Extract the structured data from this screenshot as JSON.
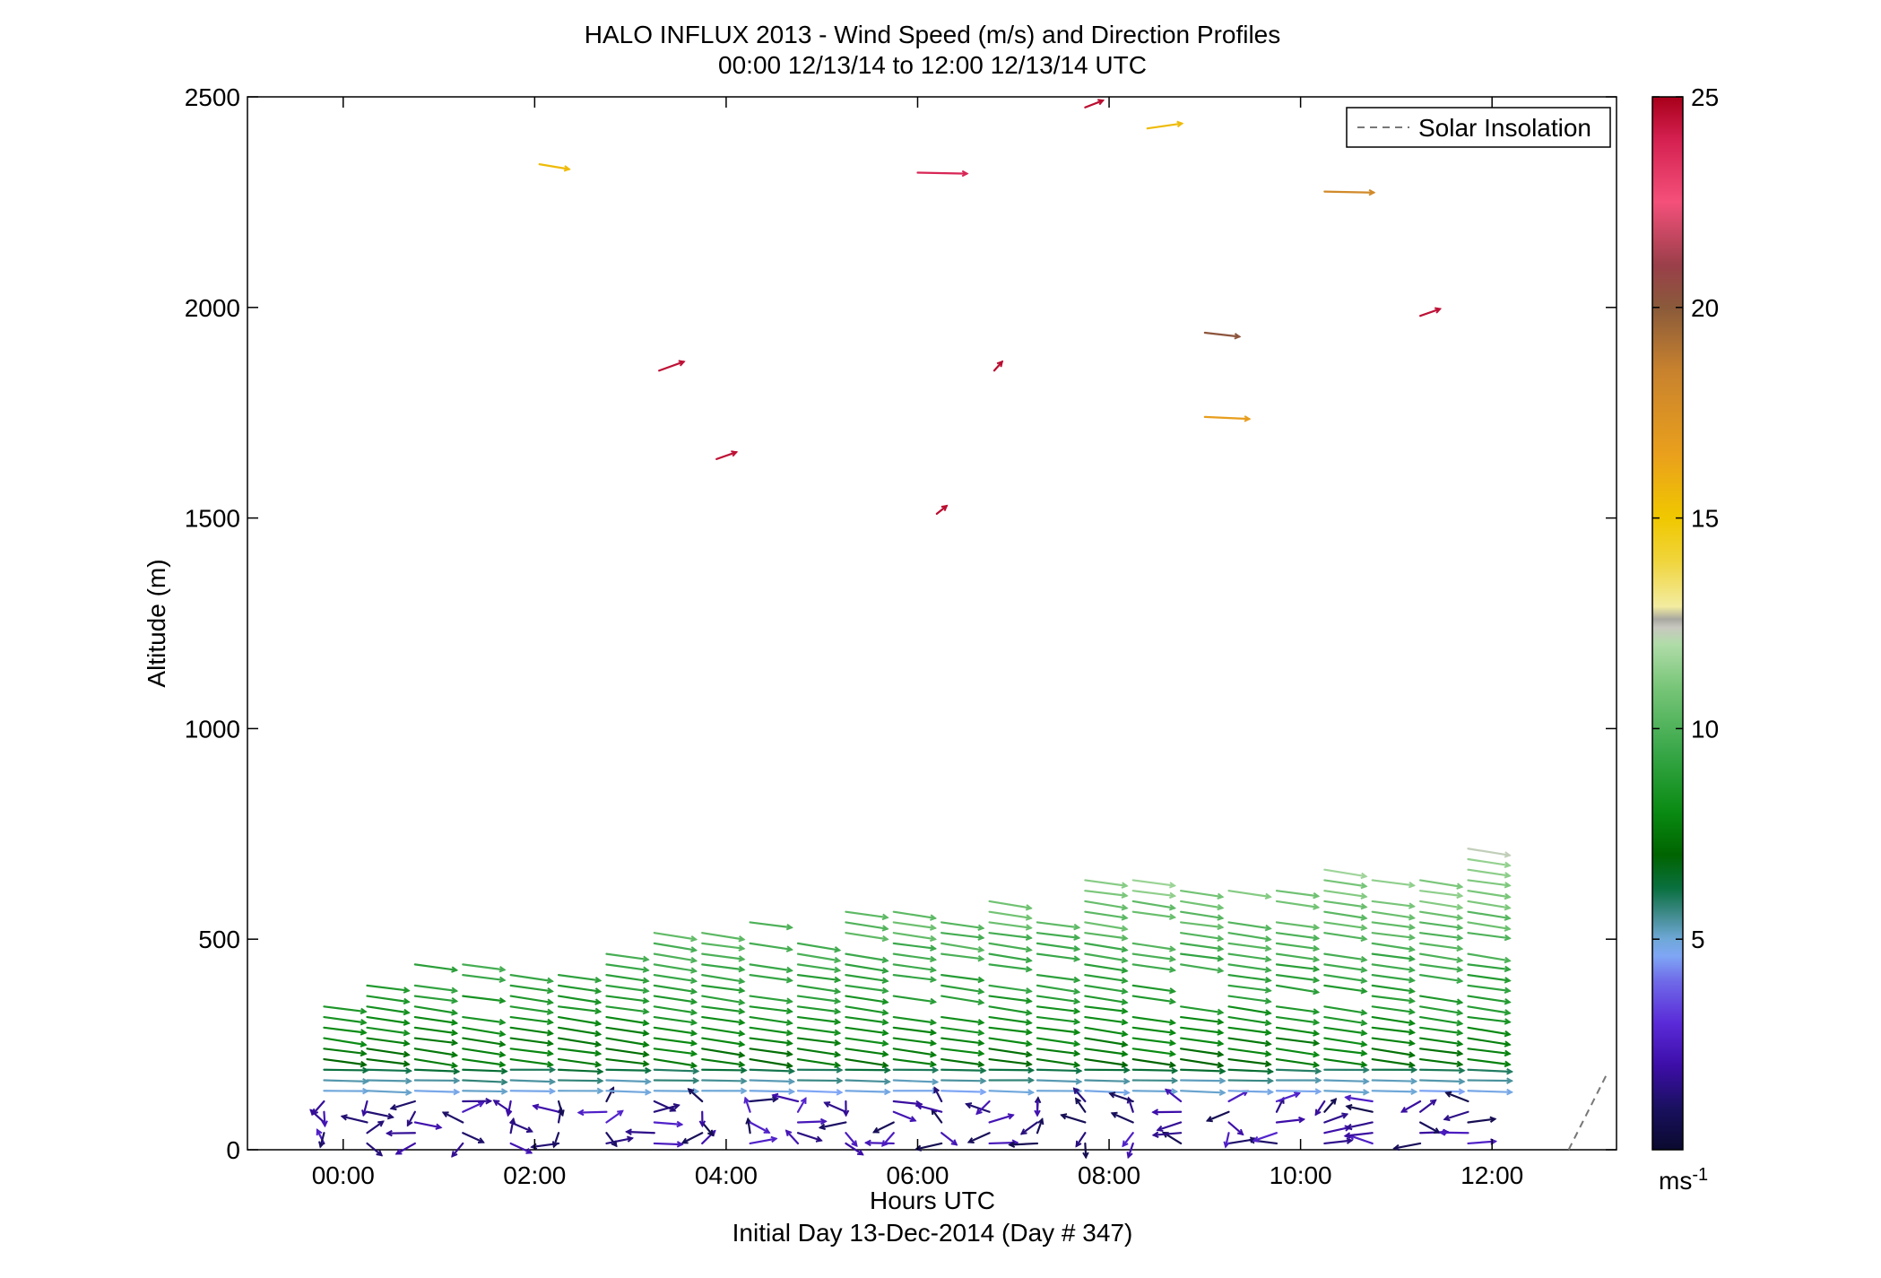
{
  "chart_data": {
    "type": "quiver",
    "title": "HALO INFLUX 2013 - Wind Speed (m/s) and Direction Profiles",
    "subtitle": "00:00 12/13/14 to 12:00 12/13/14  UTC",
    "xlabel": "Hours UTC",
    "xlabel_sub": "Initial Day 13-Dec-2014 (Day # 347)",
    "ylabel": "Altitude (m)",
    "xlim": [
      -1,
      13.3
    ],
    "ylim": [
      0,
      2500
    ],
    "x_ticks": [
      {
        "value": 0,
        "label": "00:00"
      },
      {
        "value": 2,
        "label": "02:00"
      },
      {
        "value": 4,
        "label": "04:00"
      },
      {
        "value": 6,
        "label": "06:00"
      },
      {
        "value": 8,
        "label": "08:00"
      },
      {
        "value": 10,
        "label": "10:00"
      },
      {
        "value": 12,
        "label": "12:00"
      }
    ],
    "y_ticks": [
      {
        "value": 0,
        "label": "0"
      },
      {
        "value": 500,
        "label": "500"
      },
      {
        "value": 1000,
        "label": "1000"
      },
      {
        "value": 1500,
        "label": "1500"
      },
      {
        "value": 2000,
        "label": "2000"
      },
      {
        "value": 2500,
        "label": "2500"
      }
    ],
    "legend": {
      "position": "top-right",
      "entries": [
        {
          "label": "Solar Insolation",
          "style": "dashed",
          "color": "#777777"
        }
      ]
    },
    "colorbar": {
      "min": 0,
      "max": 25,
      "unit": "ms",
      "unit_exp": "-1",
      "ticks": [
        {
          "value": 5,
          "label": "5"
        },
        {
          "value": 10,
          "label": "10"
        },
        {
          "value": 15,
          "label": "15"
        },
        {
          "value": 20,
          "label": "20"
        },
        {
          "value": 25,
          "label": "25"
        }
      ],
      "stops": [
        {
          "v": 0,
          "color": "#0a0a2e"
        },
        {
          "v": 1,
          "color": "#1a1060"
        },
        {
          "v": 2,
          "color": "#3d0ea8"
        },
        {
          "v": 3,
          "color": "#5a2ad8"
        },
        {
          "v": 4,
          "color": "#6f6ae8"
        },
        {
          "v": 4.6,
          "color": "#7fa6f5"
        },
        {
          "v": 5,
          "color": "#6fa8d8"
        },
        {
          "v": 5.6,
          "color": "#3f8a8a"
        },
        {
          "v": 6.2,
          "color": "#0a7040"
        },
        {
          "v": 7,
          "color": "#006400"
        },
        {
          "v": 8,
          "color": "#098a12"
        },
        {
          "v": 9.5,
          "color": "#3aa84a"
        },
        {
          "v": 11,
          "color": "#79c679"
        },
        {
          "v": 12,
          "color": "#b0dca8"
        },
        {
          "v": 12.4,
          "color": "#c8c8c0"
        },
        {
          "v": 12.6,
          "color": "#a8a8a0"
        },
        {
          "v": 12.9,
          "color": "#f3eca0"
        },
        {
          "v": 14,
          "color": "#f0d43a"
        },
        {
          "v": 15,
          "color": "#f0c800"
        },
        {
          "v": 16.5,
          "color": "#eaa01c"
        },
        {
          "v": 18.5,
          "color": "#c8822e"
        },
        {
          "v": 20,
          "color": "#8a5a3a"
        },
        {
          "v": 21,
          "color": "#9a3f4a"
        },
        {
          "v": 22.5,
          "color": "#f4507a"
        },
        {
          "v": 24,
          "color": "#d42050"
        },
        {
          "v": 25,
          "color": "#a8001a"
        }
      ]
    },
    "solar_insolation": {
      "x": [
        12.8,
        13.2
      ],
      "y": [
        0,
        180
      ]
    },
    "profile_times": [
      -0.2,
      0.25,
      0.75,
      1.25,
      1.75,
      2.25,
      2.75,
      3.25,
      3.75,
      4.25,
      4.75,
      5.25,
      5.75,
      6.25,
      6.75,
      7.25,
      7.75,
      8.25,
      8.75,
      9.25,
      9.75,
      10.25,
      10.75,
      11.25,
      11.75
    ],
    "upper_winds": [
      {
        "t": 2.05,
        "alt": 2340,
        "u": 0.3,
        "v": -0.05,
        "speed": 15.5
      },
      {
        "t": 3.3,
        "alt": 1850,
        "u": 0.25,
        "v": 0.09,
        "speed": 24.5
      },
      {
        "t": 3.9,
        "alt": 1640,
        "u": 0.2,
        "v": 0.07,
        "speed": 24.5
      },
      {
        "t": 6.0,
        "alt": 2320,
        "u": 0.5,
        "v": -0.01,
        "speed": 23.8
      },
      {
        "t": 6.2,
        "alt": 1510,
        "u": 0.1,
        "v": 0.08,
        "speed": 24.6
      },
      {
        "t": 6.8,
        "alt": 1850,
        "u": 0.08,
        "v": 0.09,
        "speed": 24.6
      },
      {
        "t": 7.75,
        "alt": 2475,
        "u": 0.18,
        "v": 0.07,
        "speed": 24.6
      },
      {
        "t": 8.4,
        "alt": 2425,
        "u": 0.35,
        "v": 0.05,
        "speed": 15.5
      },
      {
        "t": 9.0,
        "alt": 1940,
        "u": 0.35,
        "v": -0.04,
        "speed": 20.2
      },
      {
        "t": 9.0,
        "alt": 1740,
        "u": 0.45,
        "v": -0.02,
        "speed": 16.6
      },
      {
        "t": 10.25,
        "alt": 2275,
        "u": 0.5,
        "v": -0.01,
        "speed": 18.0
      },
      {
        "t": 11.25,
        "alt": 1980,
        "u": 0.2,
        "v": 0.07,
        "speed": 24.5
      }
    ]
  }
}
